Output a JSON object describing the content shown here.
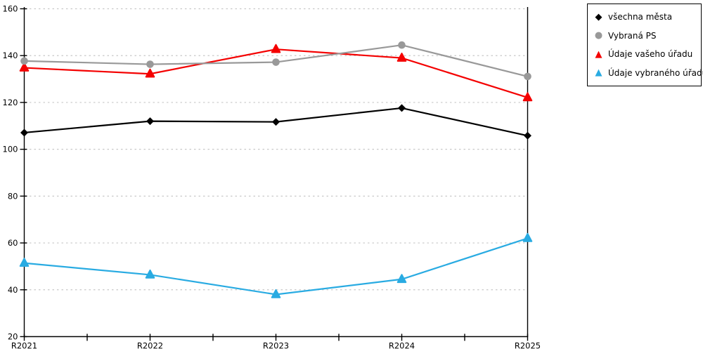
{
  "chart_data": {
    "type": "line",
    "title": "",
    "xlabel": "",
    "ylabel": "",
    "categories": [
      "R2021",
      "R2022",
      "R2023",
      "R2024",
      "R2025"
    ],
    "series": [
      {
        "name": "všechna města",
        "marker": "diamond",
        "color": "#000000",
        "values": [
          107.1,
          112.0,
          111.7,
          117.6,
          105.8
        ]
      },
      {
        "name": "Vybraná PS",
        "marker": "circle",
        "color": "#999999",
        "values": [
          137.7,
          136.3,
          137.2,
          144.5,
          131.1
        ]
      },
      {
        "name": "Údaje vašeho úřadu",
        "marker": "triangle",
        "color": "#f40000",
        "values": [
          134.8,
          132.2,
          142.7,
          139.0,
          122.1
        ]
      },
      {
        "name": "Údaje vybraného úřadu",
        "marker": "triangle",
        "color": "#29abe2",
        "values": [
          51.4,
          46.4,
          38.0,
          44.5,
          62.0
        ]
      }
    ],
    "ylim": [
      20,
      160
    ],
    "yticks": [
      20,
      40,
      60,
      80,
      100,
      120,
      140,
      160
    ],
    "grid": "horizontal-dashed",
    "gridline_color": "#c8c8c8",
    "axis_color": "#000000",
    "legend_position": "top-right",
    "draw_order": [
      2,
      1,
      0,
      3
    ]
  }
}
